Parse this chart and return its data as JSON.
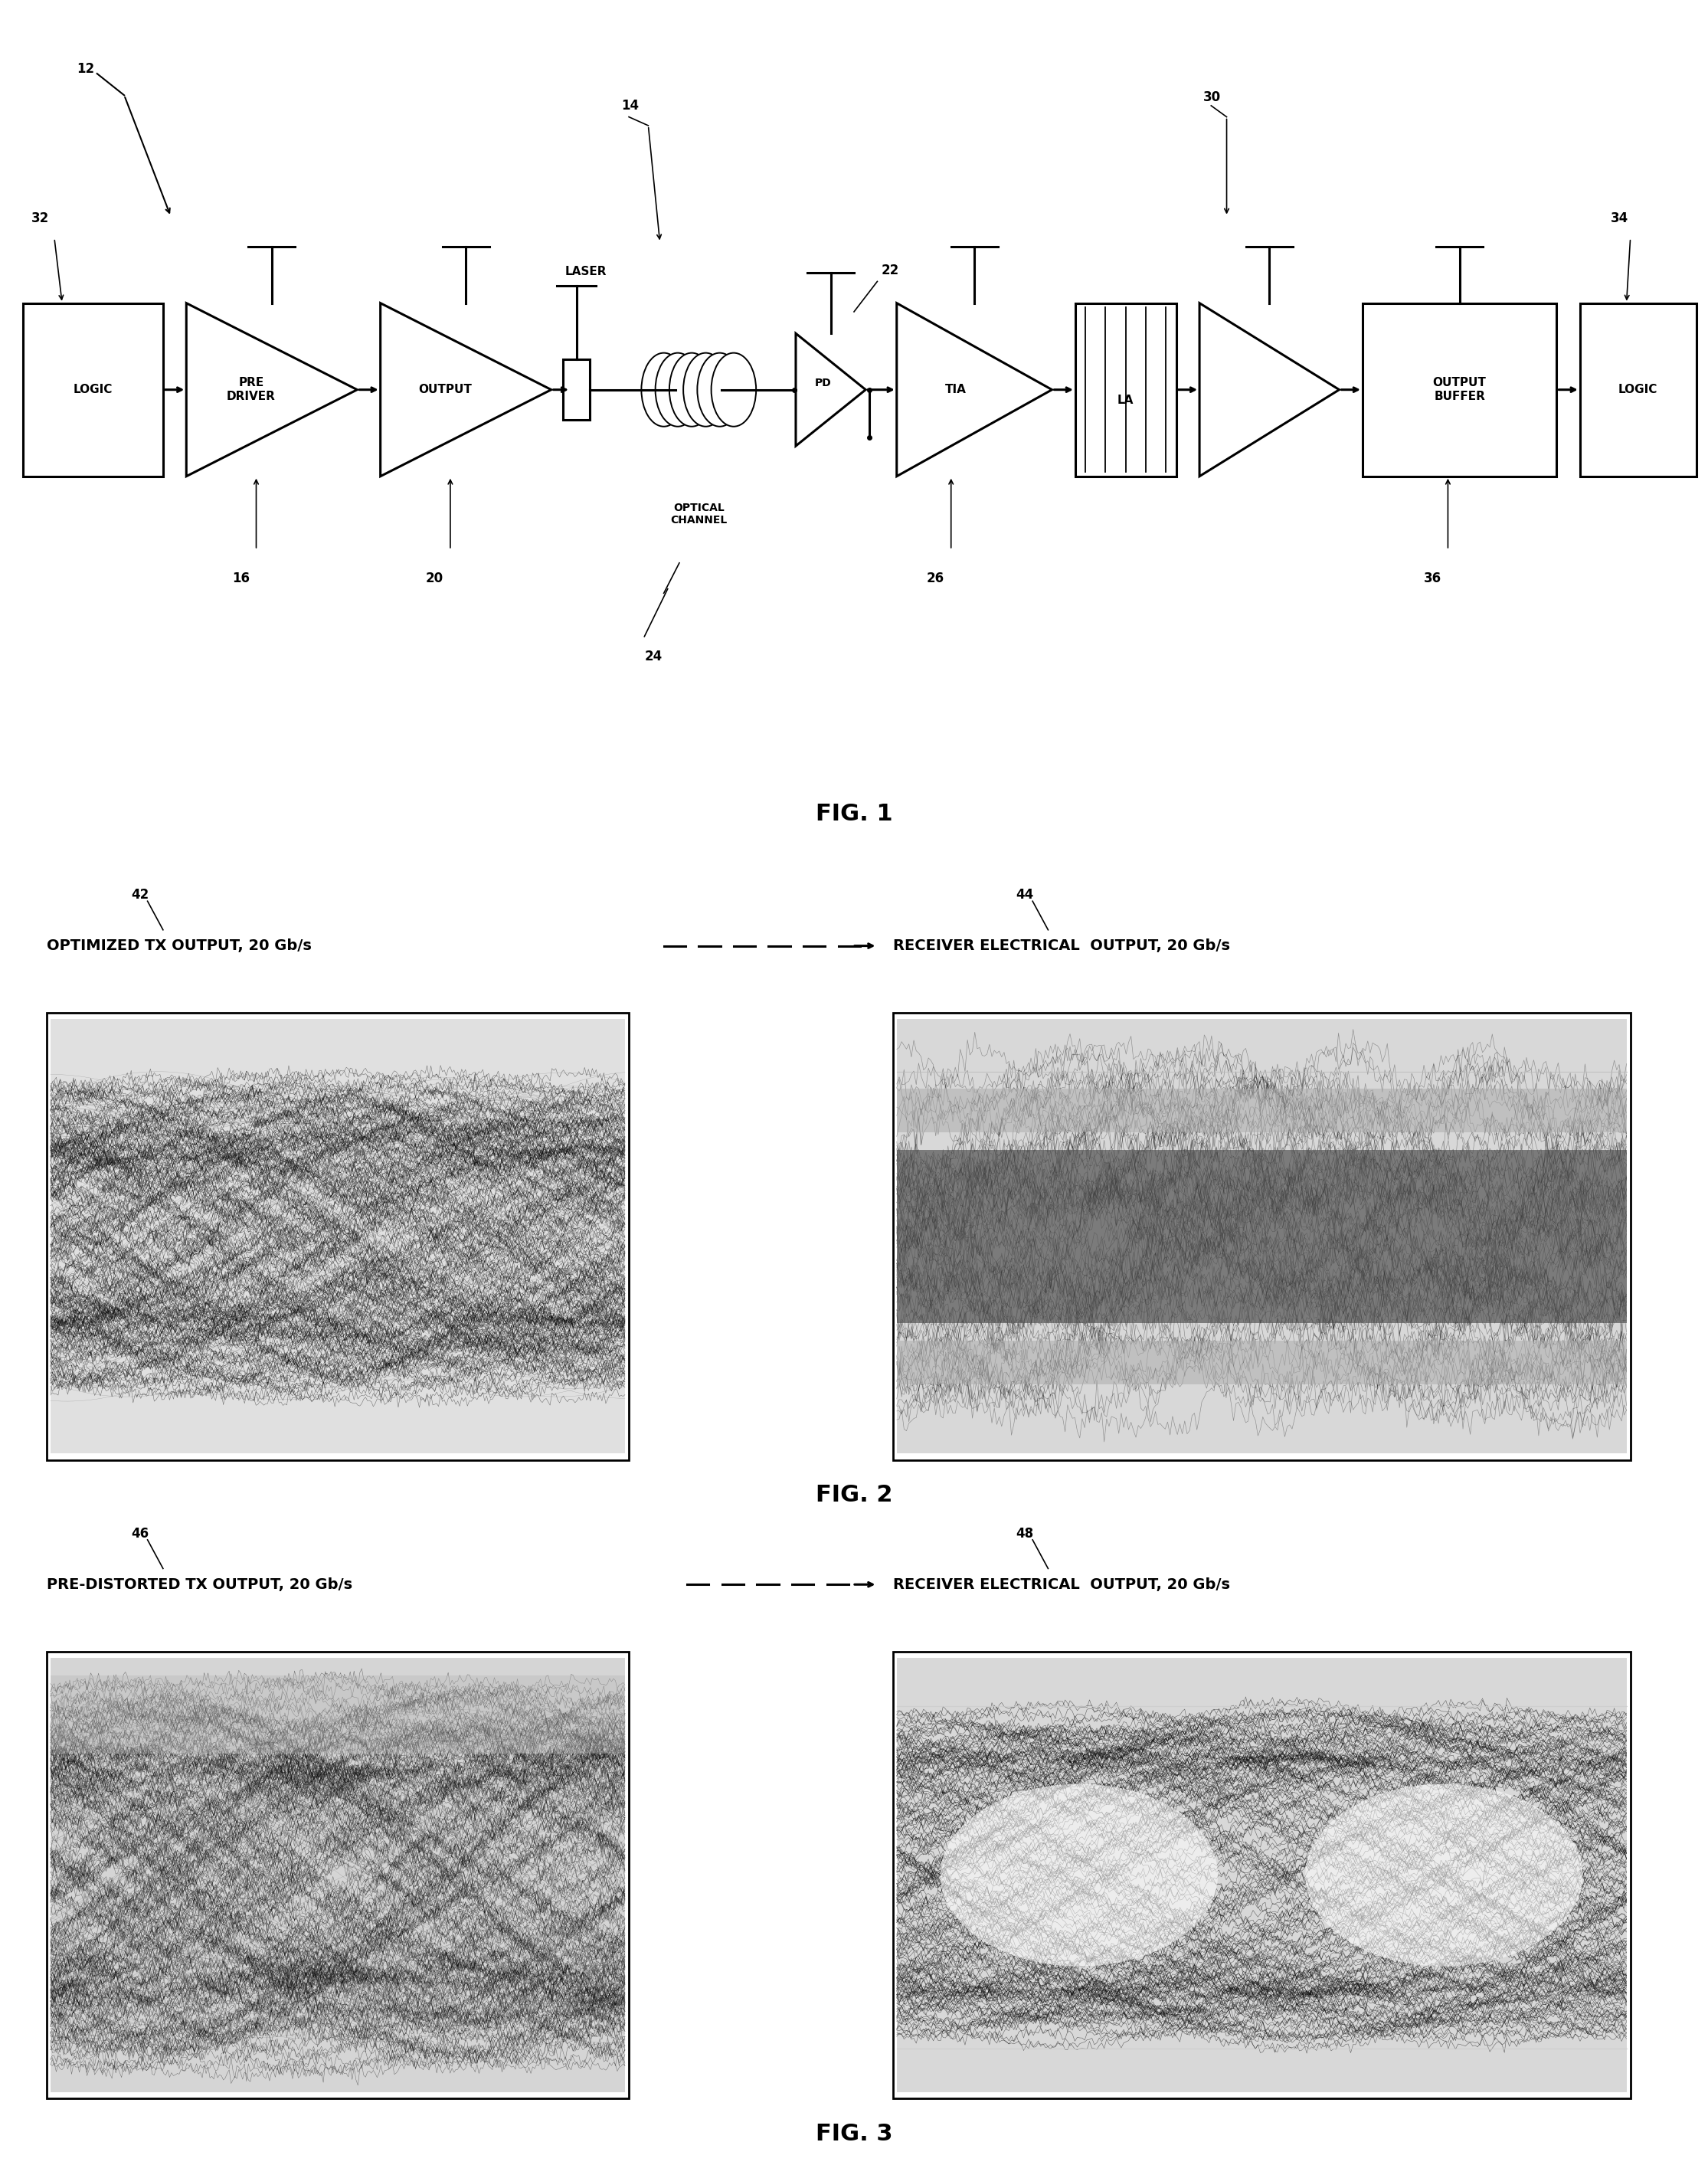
{
  "fig_width": 22.3,
  "fig_height": 28.26,
  "bg_color": "#ffffff",
  "fig1_label": "FIG. 1",
  "fig2_label": "FIG. 2",
  "fig3_label": "FIG. 3",
  "ref_12": "12",
  "ref_14": "14",
  "ref_16": "16",
  "ref_20": "20",
  "ref_22": "22",
  "ref_24": "24",
  "ref_26": "26",
  "ref_30": "30",
  "ref_32": "32",
  "ref_34": "34",
  "ref_36": "36",
  "ref_42": "42",
  "ref_44": "44",
  "ref_46": "46",
  "ref_48": "48",
  "label_logic1": "LOGIC",
  "label_predriver": "PRE\nDRIVER",
  "label_output": "OUTPUT",
  "label_laser": "LASER",
  "label_optical": "OPTICAL\nCHANNEL",
  "label_pd": "PD",
  "label_tia": "TIA",
  "label_la": "LA",
  "label_outbuf": "OUTPUT\nBUFFER",
  "label_logic2": "LOGIC",
  "fig2_left_label": "OPTIMIZED TX OUTPUT, 20 Gb/s",
  "fig2_right_label": "RECEIVER ELECTRICAL  OUTPUT, 20 Gb/s",
  "fig3_left_label": "PRE-DISTORTED TX OUTPUT, 20 Gb/s",
  "fig3_right_label": "RECEIVER ELECTRICAL  OUTPUT, 20 Gb/s",
  "fs_block": 11,
  "fs_ref": 12,
  "fs_fig": 22,
  "fs_caption": 14
}
